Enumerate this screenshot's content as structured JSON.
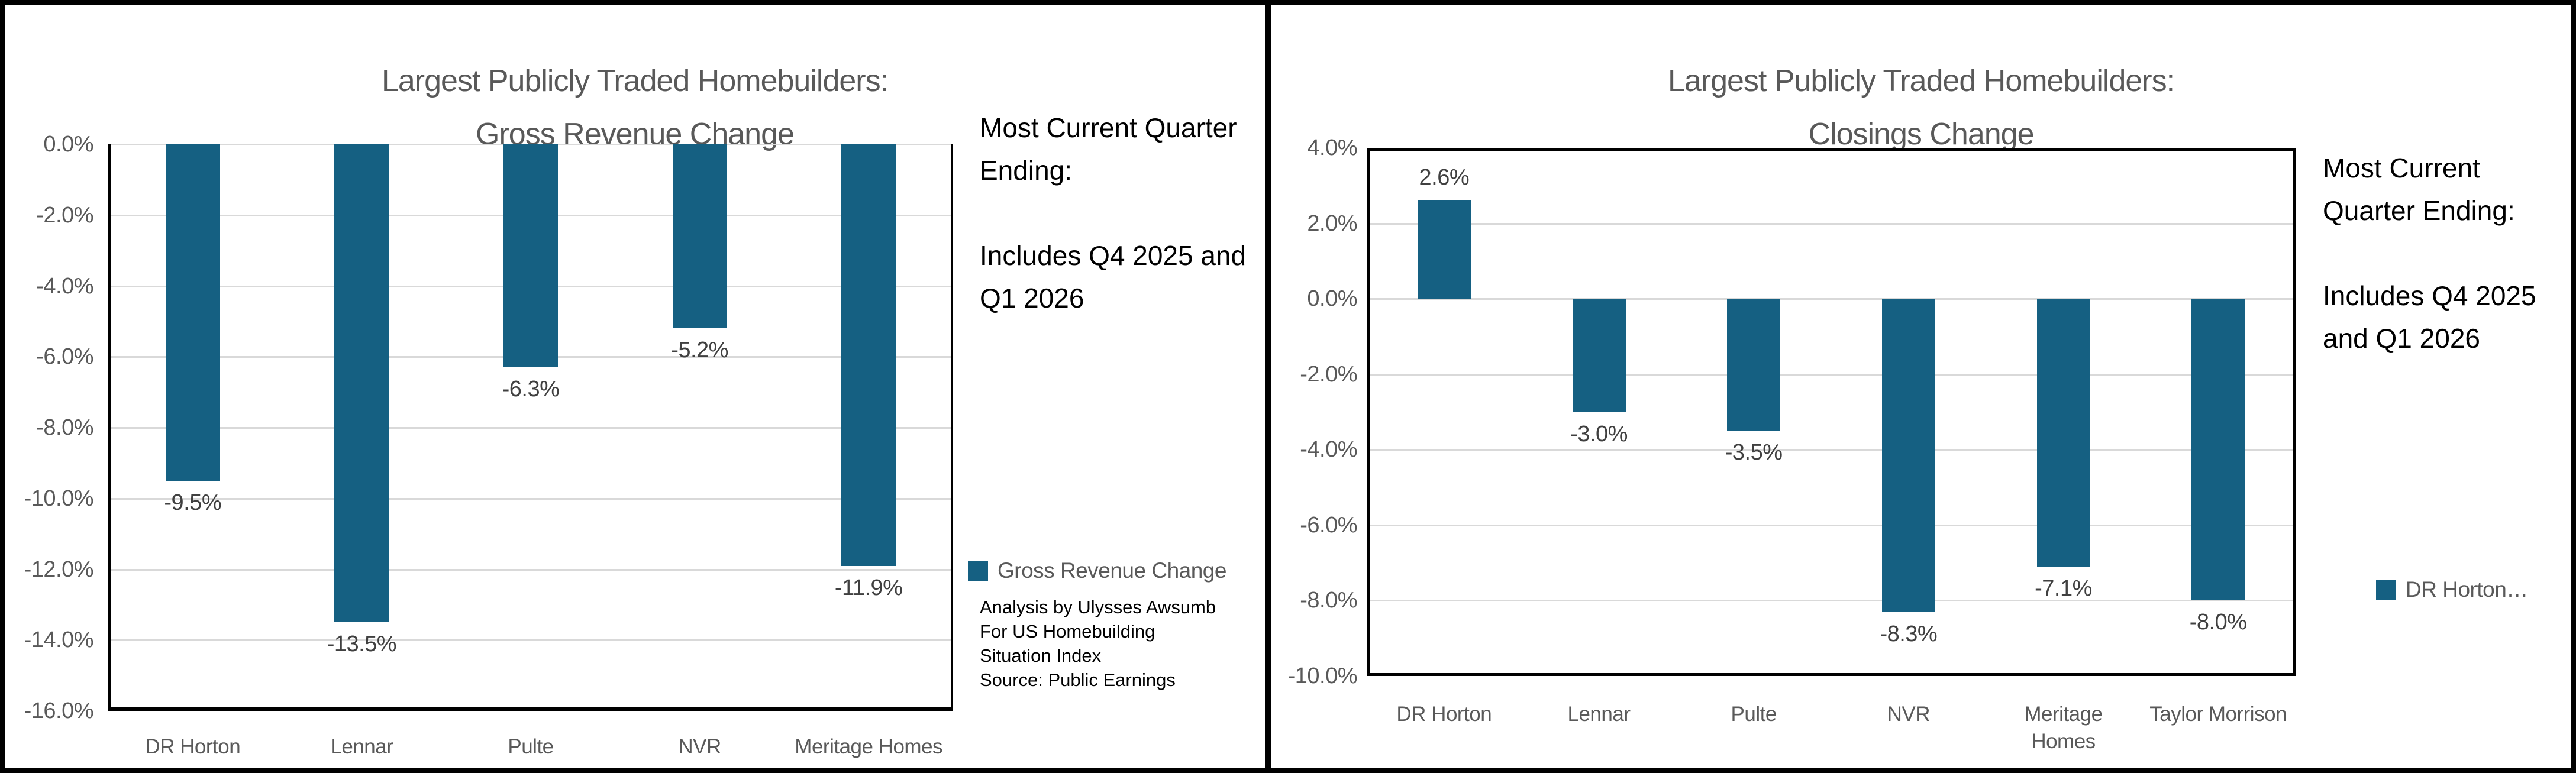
{
  "colors": {
    "bar_fill": "#156082",
    "axis_text": "#595959",
    "data_label_text": "#404040",
    "gridline": "#D9D9D9",
    "border": "#000000"
  },
  "chart_data": [
    {
      "type": "bar",
      "title": "Largest Publicly Traded Homebuilders: Gross Revenue Change",
      "categories": [
        "DR Horton",
        "Lennar",
        "Pulte",
        "NVR",
        "Meritage Homes"
      ],
      "series": [
        {
          "name": "Gross Revenue Change",
          "values": [
            -9.5,
            -13.5,
            -6.3,
            -5.2,
            -11.9
          ]
        }
      ],
      "xlabel": "",
      "ylabel": "",
      "ylim": [
        -16,
        0
      ],
      "y_tick_step": 2,
      "grid": true,
      "legend_position": "right",
      "data_labels": [
        "-9.5%",
        "-13.5%",
        "-6.3%",
        "-5.2%",
        "-11.9%"
      ]
    },
    {
      "type": "bar",
      "title": "Largest Publicly Traded Homebuilders: Closings Change",
      "categories": [
        "DR Horton",
        "Lennar",
        "Pulte",
        "NVR",
        "Meritage Homes",
        "Taylor Morrison"
      ],
      "series": [
        {
          "name": "DR Horton…",
          "values": [
            2.6,
            -3.0,
            -3.5,
            -8.3,
            -7.1,
            -8.0
          ]
        }
      ],
      "xlabel": "",
      "ylabel": "",
      "ylim": [
        -10,
        4
      ],
      "y_tick_step": 2,
      "grid": true,
      "legend_position": "right",
      "data_labels": [
        "2.6%",
        "-3.0%",
        "-3.5%",
        "-8.3%",
        "-7.1%",
        "-8.0%"
      ]
    }
  ],
  "panels": [
    {
      "title_lines": [
        "Largest Publicly Traded Homebuilders:",
        "Gross Revenue Change"
      ],
      "y_ticks": [
        {
          "label": "0.0%",
          "value": 0
        },
        {
          "label": "-2.0%",
          "value": -2
        },
        {
          "label": "-4.0%",
          "value": -4
        },
        {
          "label": "-6.0%",
          "value": -6
        },
        {
          "label": "-8.0%",
          "value": -8
        },
        {
          "label": "-10.0%",
          "value": -10
        },
        {
          "label": "-12.0%",
          "value": -12
        },
        {
          "label": "-14.0%",
          "value": -14
        },
        {
          "label": "-16.0%",
          "value": -16
        }
      ],
      "bars": [
        {
          "category": "DR Horton",
          "value": -9.5,
          "label": "-9.5%"
        },
        {
          "category": "Lennar",
          "value": -13.5,
          "label": "-13.5%"
        },
        {
          "category": "Pulte",
          "value": -6.3,
          "label": "-6.3%"
        },
        {
          "category": "NVR",
          "value": -5.2,
          "label": "-5.2%"
        },
        {
          "category": "Meritage Homes",
          "value": -11.9,
          "label": "-11.9%"
        }
      ],
      "x_labels": [
        [
          "DR Horton"
        ],
        [
          "Lennar"
        ],
        [
          "Pulte"
        ],
        [
          "NVR"
        ],
        [
          "Meritage Homes"
        ]
      ],
      "note_lines": [
        "Most Current Quarter",
        "Ending:",
        "",
        "Includes Q4 2025 and",
        "Q1 2026"
      ],
      "legend": {
        "label": "Gross Revenue Change"
      },
      "source_lines": [
        "Analysis by Ulysses Awsumb",
        "For US Homebuilding",
        "Situation Index",
        "Source: Public Earnings"
      ]
    },
    {
      "title_lines": [
        "Largest Publicly Traded Homebuilders:",
        "Closings Change"
      ],
      "y_ticks": [
        {
          "label": "4.0%",
          "value": 4
        },
        {
          "label": "2.0%",
          "value": 2
        },
        {
          "label": "0.0%",
          "value": 0
        },
        {
          "label": "-2.0%",
          "value": -2
        },
        {
          "label": "-4.0%",
          "value": -4
        },
        {
          "label": "-6.0%",
          "value": -6
        },
        {
          "label": "-8.0%",
          "value": -8
        },
        {
          "label": "-10.0%",
          "value": -10
        }
      ],
      "bars": [
        {
          "category": "DR Horton",
          "value": 2.6,
          "label": "2.6%"
        },
        {
          "category": "Lennar",
          "value": -3.0,
          "label": "-3.0%"
        },
        {
          "category": "Pulte",
          "value": -3.5,
          "label": "-3.5%"
        },
        {
          "category": "NVR",
          "value": -8.3,
          "label": "-8.3%"
        },
        {
          "category": "Meritage Homes",
          "value": -7.1,
          "label": "-7.1%"
        },
        {
          "category": "Taylor Morrison",
          "value": -8.0,
          "label": "-8.0%"
        }
      ],
      "x_labels": [
        [
          "DR Horton"
        ],
        [
          "Lennar"
        ],
        [
          "Pulte"
        ],
        [
          "NVR"
        ],
        [
          "Meritage",
          "Homes"
        ],
        [
          "Taylor Morrison"
        ]
      ],
      "note_lines": [
        "Most Current",
        "Quarter Ending:",
        "",
        "Includes Q4 2025",
        "and Q1 2026"
      ],
      "legend": {
        "label": "DR Horton…"
      },
      "source_lines": []
    }
  ]
}
